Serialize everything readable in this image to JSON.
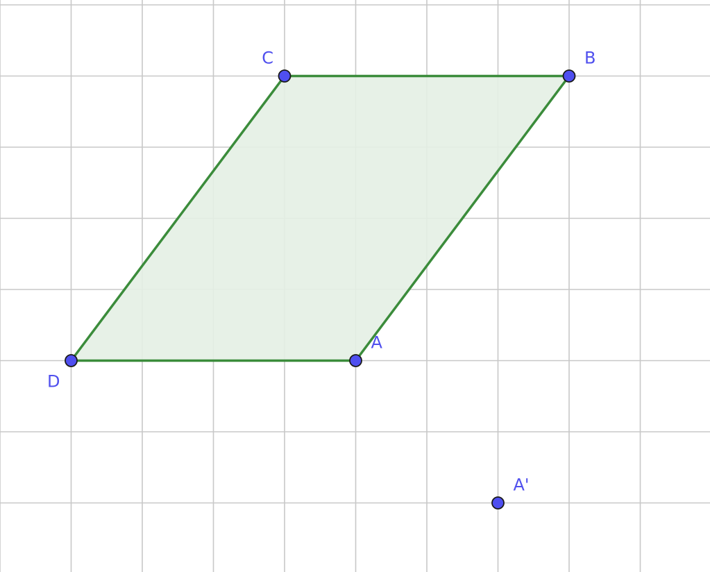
{
  "colors": {
    "grid": "#c8c8c8",
    "polygon_stroke": "#3b8c3b",
    "polygon_fill": "#e4efe4",
    "point_fill": "#4f4ff0",
    "point_stroke": "#1a1a1a",
    "label": "#5050ee"
  },
  "grid": {
    "x_min": -1,
    "x_max": 9,
    "y_min": -1,
    "y_max": 7
  },
  "polygon": {
    "name": "parallelogram-abcd",
    "vertices": [
      "A",
      "B",
      "C",
      "D"
    ]
  },
  "points": [
    {
      "id": "A",
      "label": "A",
      "x": 4,
      "y": 3,
      "label_pos": "upper-right"
    },
    {
      "id": "B",
      "label": "B",
      "x": 7,
      "y": 7,
      "label_pos": "upper-right"
    },
    {
      "id": "C",
      "label": "C",
      "x": 3,
      "y": 7,
      "label_pos": "upper-left"
    },
    {
      "id": "D",
      "label": "D",
      "x": 0,
      "y": 3,
      "label_pos": "lower-left"
    },
    {
      "id": "A_prime",
      "label": "A'",
      "x": 6,
      "y": 1,
      "label_pos": "upper-right"
    }
  ],
  "segments": [
    {
      "from": "A",
      "to": "B"
    },
    {
      "from": "B",
      "to": "C"
    },
    {
      "from": "C",
      "to": "D"
    },
    {
      "from": "D",
      "to": "A"
    }
  ]
}
